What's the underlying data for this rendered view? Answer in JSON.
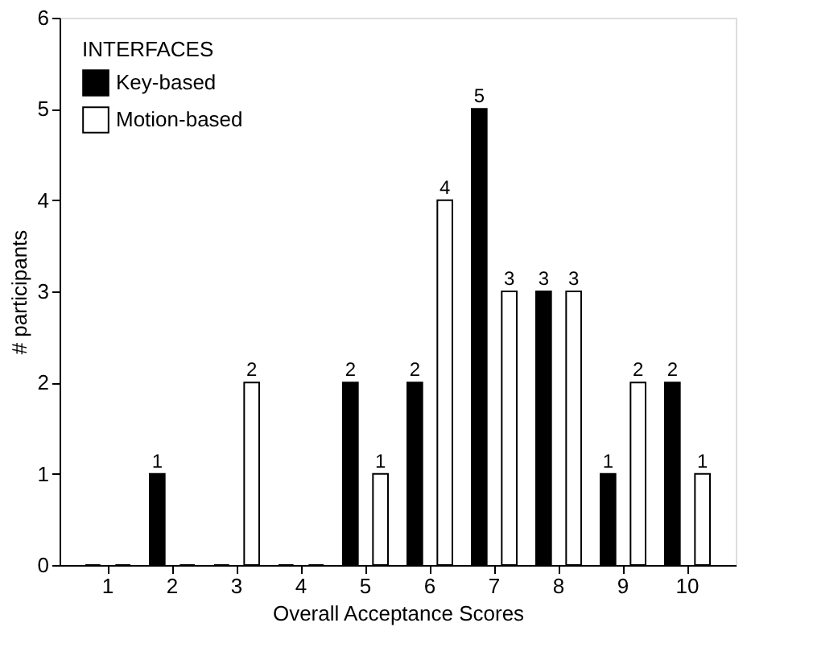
{
  "chart_data": {
    "type": "bar",
    "xlabel": "Overall Acceptance Scores",
    "ylabel": "# participants",
    "legend_title": "INTERFACES",
    "legend": "top left",
    "grid": false,
    "categories": [
      "1",
      "2",
      "3",
      "4",
      "5",
      "6",
      "7",
      "8",
      "9",
      "10"
    ],
    "ylim": [
      0,
      6
    ],
    "yticks": [
      0,
      1,
      2,
      3,
      4,
      5,
      6
    ],
    "series": [
      {
        "name": "Key-based",
        "color": "#000000",
        "values": [
          0,
          1,
          0,
          0,
          2,
          2,
          5,
          3,
          1,
          2
        ],
        "value_labels": [
          null,
          "1",
          null,
          null,
          "2",
          "2",
          "5",
          "3",
          "1",
          "2"
        ]
      },
      {
        "name": "Motion-based",
        "color": "#ffffff",
        "values": [
          0,
          0,
          2,
          0,
          1,
          4,
          3,
          3,
          2,
          1
        ],
        "value_labels": [
          null,
          null,
          "2",
          null,
          "1",
          "4",
          "3",
          "3",
          "2",
          "1"
        ]
      }
    ]
  }
}
